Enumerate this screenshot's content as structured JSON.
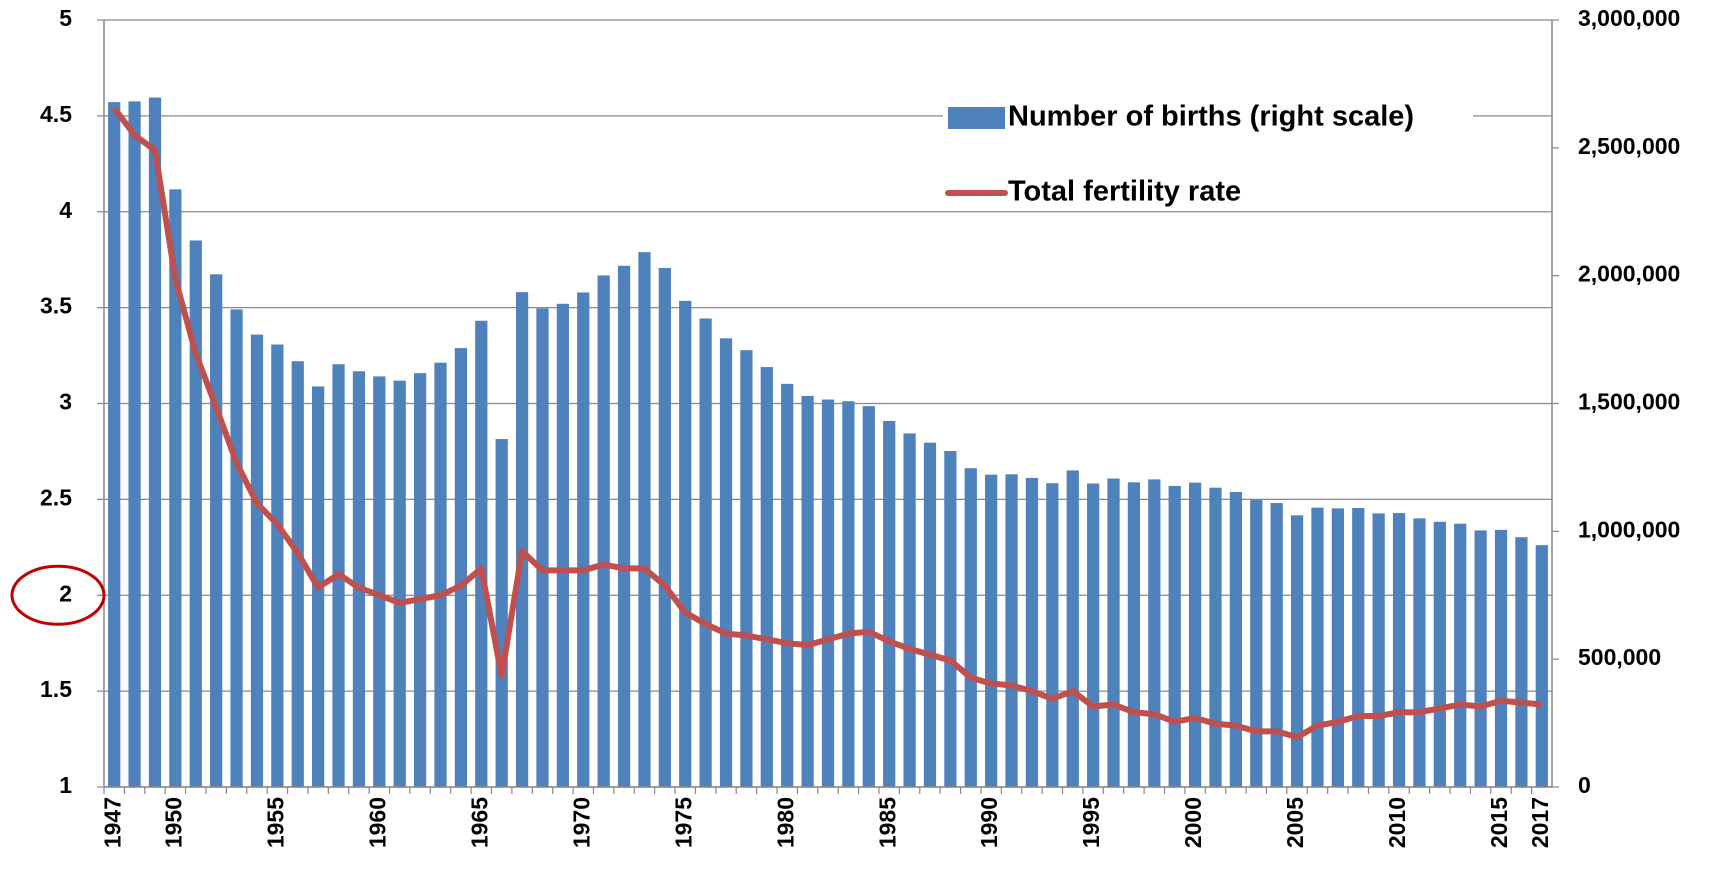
{
  "chart_data": {
    "type": "bar-line",
    "x": [
      1947,
      1948,
      1949,
      1950,
      1951,
      1952,
      1953,
      1954,
      1955,
      1956,
      1957,
      1958,
      1959,
      1960,
      1961,
      1962,
      1963,
      1964,
      1965,
      1966,
      1967,
      1968,
      1969,
      1970,
      1971,
      1972,
      1973,
      1974,
      1975,
      1976,
      1977,
      1978,
      1979,
      1980,
      1981,
      1982,
      1983,
      1984,
      1985,
      1986,
      1987,
      1988,
      1989,
      1990,
      1991,
      1992,
      1993,
      1994,
      1995,
      1996,
      1997,
      1998,
      1999,
      2000,
      2001,
      2002,
      2003,
      2004,
      2005,
      2006,
      2007,
      2008,
      2009,
      2010,
      2011,
      2012,
      2013,
      2014,
      2015,
      2016,
      2017
    ],
    "xlim": [
      1946.5,
      2017.5
    ],
    "xticks": [
      1947,
      1950,
      1955,
      1960,
      1965,
      1970,
      1975,
      1980,
      1985,
      1990,
      1995,
      2000,
      2005,
      2010,
      2015,
      2017
    ],
    "series": [
      {
        "name": "Number of births (right scale)",
        "color": "#4f81bd",
        "axis": "y2",
        "kind": "bar",
        "values": [
          2678792,
          2681624,
          2696638,
          2337507,
          2137689,
          2005162,
          1868040,
          1769580,
          1730692,
          1665278,
          1566713,
          1653469,
          1626088,
          1606041,
          1589372,
          1618616,
          1659521,
          1716761,
          1823697,
          1360974,
          1935647,
          1871839,
          1889815,
          1934239,
          2000973,
          2038682,
          2091983,
          2029989,
          1901440,
          1832617,
          1755100,
          1708643,
          1642580,
          1576889,
          1529455,
          1515392,
          1508687,
          1489780,
          1431577,
          1382946,
          1346658,
          1314006,
          1246802,
          1221585,
          1223245,
          1208989,
          1188282,
          1238328,
          1187064,
          1206555,
          1191665,
          1203147,
          1177669,
          1190547,
          1170662,
          1153855,
          1123610,
          1110721,
          1062530,
          1092674,
          1089818,
          1091156,
          1070035,
          1071304,
          1050806,
          1037231,
          1029816,
          1003539,
          1005677,
          976978,
          946065
        ]
      },
      {
        "name": "Total fertility rate",
        "color": "#c0504d",
        "kind": "line",
        "values": [
          4.54,
          4.4,
          4.32,
          3.65,
          3.26,
          2.98,
          2.69,
          2.48,
          2.37,
          2.22,
          2.04,
          2.11,
          2.04,
          2.0,
          1.96,
          1.98,
          2.0,
          2.05,
          2.14,
          1.58,
          2.23,
          2.13,
          2.13,
          2.13,
          2.16,
          2.14,
          2.14,
          2.05,
          1.91,
          1.85,
          1.8,
          1.79,
          1.77,
          1.75,
          1.74,
          1.77,
          1.8,
          1.81,
          1.76,
          1.72,
          1.69,
          1.66,
          1.57,
          1.54,
          1.53,
          1.5,
          1.46,
          1.5,
          1.42,
          1.43,
          1.39,
          1.38,
          1.34,
          1.36,
          1.33,
          1.32,
          1.29,
          1.29,
          1.26,
          1.32,
          1.34,
          1.37,
          1.37,
          1.39,
          1.39,
          1.41,
          1.43,
          1.42,
          1.45,
          1.44,
          1.43
        ]
      }
    ],
    "ylim": [
      1,
      5
    ],
    "yticks": [
      1,
      1.5,
      2,
      2.5,
      3,
      3.5,
      4,
      4.5,
      5
    ],
    "y2lim": [
      0,
      3000000
    ],
    "y2ticks": [
      {
        "value": 0,
        "label": "0"
      },
      {
        "value": 500000,
        "label": "500,000"
      },
      {
        "value": 1000000,
        "label": "1,000,000"
      },
      {
        "value": 1500000,
        "label": "1,500,000"
      },
      {
        "value": 2000000,
        "label": "2,000,000"
      },
      {
        "value": 2500000,
        "label": "2,500,000"
      },
      {
        "value": 3000000,
        "label": "3,000,000"
      }
    ],
    "grid": true,
    "legend": "top-right"
  }
}
